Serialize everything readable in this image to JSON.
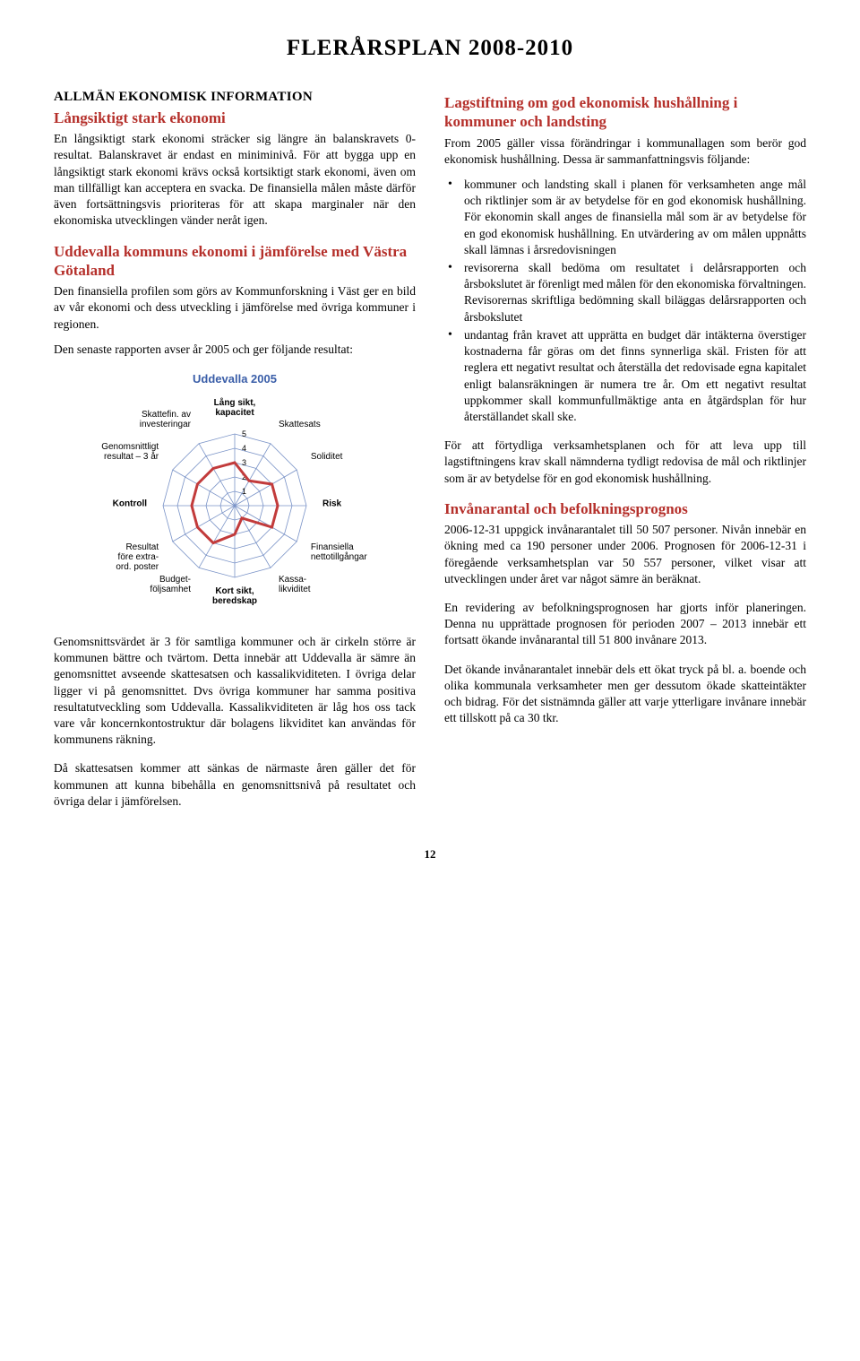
{
  "page_title": "FLERÅRSPLAN 2008-2010",
  "left": {
    "section_title": "ALLMÄN EKONOMISK INFORMATION",
    "h1": "Långsiktigt stark ekonomi",
    "p1": "En långsiktigt stark ekonomi sträcker sig längre än balanskravets 0-resultat. Balanskravet är endast en miniminivå. För att bygga upp en långsiktigt stark ekonomi krävs också kortsiktigt stark ekonomi, även om man tillfälligt kan acceptera en svacka. De finansiella målen måste därför även fortsättningsvis prioriteras för att skapa marginaler när den ekonomiska utvecklingen vänder neråt igen.",
    "h2": "Uddevalla kommuns ekonomi i jämförelse med Västra Götaland",
    "p2": "Den finansiella profilen som görs av Kommunforskning i Väst ger en bild av vår ekonomi och dess utveckling i jämförelse med övriga kommuner i regionen.",
    "p3": "Den senaste rapporten avser år 2005 och ger följande resultat:",
    "p4": "Genomsnittsvärdet är 3 för samtliga kommuner och är cirkeln större är kommunen bättre och tvärtom. Detta innebär att Uddevalla är sämre än genomsnittet avseende skattesatsen och kassalikviditeten. I övriga delar ligger vi på genomsnittet. Dvs övriga kommuner har samma positiva resultatutveckling som Uddevalla. Kassalikviditeten är låg hos oss tack vare vår koncernkontostruktur där bolagens likviditet kan användas för kommunens räkning.",
    "p5": "Då skattesatsen kommer att sänkas de närmaste åren gäller det för kommunen att kunna bibehålla en genomsnittsnivå på resultatet och övriga delar i jämförelsen."
  },
  "right": {
    "h1": "Lagstiftning om god ekonomisk hushållning i kommuner och landsting",
    "p1": "From 2005 gäller vissa förändringar i kommunallagen som berör god ekonomisk hushållning. Dessa är sammanfattningsvis följande:",
    "b1": "kommuner och landsting skall i planen för verksamheten ange mål och riktlinjer som är av betydelse för en god ekonomisk hushållning. För ekonomin skall anges de finansiella mål som är av betydelse för en god ekonomisk hushållning. En utvärdering av om målen uppnåtts skall lämnas i årsredovisningen",
    "b2": "revisorerna skall bedöma om resultatet i delårsrapporten och årsbokslutet är förenligt med målen för den ekonomiska förvaltningen. Revisorernas skriftliga bedömning skall biläggas delårsrapporten och årsbokslutet",
    "b3": "undantag från kravet att upprätta en budget där intäkterna överstiger kostnaderna får göras om det finns synnerliga skäl. Fristen för att reglera ett negativt resultat och återställa det redovisade egna kapitalet enligt balansräkningen är numera tre år. Om ett negativt resultat uppkommer skall kommunfullmäktige anta en åtgärdsplan för hur återställandet skall ske.",
    "p2": "För att förtydliga verksamhetsplanen och för att leva upp till lagstiftningens krav skall nämnderna tydligt redovisa de mål och riktlinjer som är av betydelse för en god ekonomisk hushållning.",
    "h2": "Invånarantal och befolkningsprognos",
    "p3": "2006-12-31 uppgick invånarantalet till 50 507 personer. Nivån innebär en ökning med ca 190 personer under 2006. Prognosen för 2006-12-31 i föregående verksamhetsplan var 50 557 personer, vilket visar att utvecklingen under året var något sämre än beräknat.",
    "p4": "En revidering av befolkningsprognosen har gjorts inför planeringen. Denna nu upprättade prognosen för perioden 2007 – 2013 innebär ett fortsatt ökande invånarantal till 51 800 invånare 2013.",
    "p5": "Det ökande invånarantalet innebär dels ett ökat tryck på bl. a. boende och olika kommunala verksamheter men ger dessutom ökade skatteintäkter och bidrag. För det sistnämnda gäller att varje ytterligare invånare innebär ett tillskott på ca 30 tkr."
  },
  "chart": {
    "title": "Uddevalla 2005",
    "axes": [
      {
        "label": "Lång sikt,",
        "label2": "kapacitet"
      },
      {
        "label": "Skattesats"
      },
      {
        "label": "Soliditet"
      },
      {
        "label": "Risk"
      },
      {
        "label": "Finansiella",
        "label2": "nettotillgångar"
      },
      {
        "label": "Kassa-",
        "label2": "likviditet"
      },
      {
        "label": "Kort sikt,",
        "label2": "beredskap"
      },
      {
        "label": "Budget-",
        "label2": "följsamhet"
      },
      {
        "label": "Resultat",
        "label2": "före extra-",
        "label3": "ord. poster"
      },
      {
        "label": "Kontroll"
      },
      {
        "label": "Genomsnittligt",
        "label2": "resultat – 3 år"
      },
      {
        "label": "Skattefin. av",
        "label2": "investeringar"
      }
    ],
    "rings": [
      1,
      2,
      3,
      4,
      5
    ],
    "values": [
      3,
      2,
      3,
      3,
      3,
      1,
      2,
      3,
      3,
      3,
      3,
      3
    ],
    "colors": {
      "ring": "#7a93c7",
      "axis": "#7a93c7",
      "profile": "#c23b3b",
      "title": "#3a5ea8"
    }
  },
  "page_number": "12"
}
